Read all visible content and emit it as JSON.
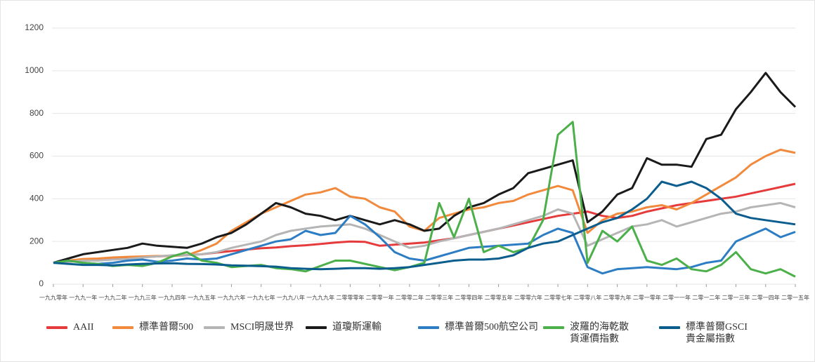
{
  "chart_data": {
    "type": "line",
    "x": [
      1990,
      1990.5,
      1991,
      1991.5,
      1992,
      1992.5,
      1993,
      1993.5,
      1994,
      1994.5,
      1995,
      1995.5,
      1996,
      1996.5,
      1997,
      1997.5,
      1998,
      1998.5,
      1999,
      1999.5,
      2000,
      2000.5,
      2001,
      2001.5,
      2002,
      2002.5,
      2003,
      2003.5,
      2004,
      2004.5,
      2005,
      2005.5,
      2006,
      2006.5,
      2007,
      2007.5,
      2008,
      2008.5,
      2009,
      2009.5,
      2010,
      2010.5,
      2011,
      2011.5,
      2012,
      2012.5,
      2013,
      2013.5,
      2014,
      2014.5,
      2015
    ],
    "xlim": [
      1990,
      2015
    ],
    "xticks": [
      {
        "value": 1990,
        "label": "一九九零年"
      },
      {
        "value": 1991,
        "label": "一九九一年"
      },
      {
        "value": 1992,
        "label": "一九九二年"
      },
      {
        "value": 1993,
        "label": "一九九三年"
      },
      {
        "value": 1994,
        "label": "一九九四年"
      },
      {
        "value": 1995,
        "label": "一九九五年"
      },
      {
        "value": 1996,
        "label": "一九九六年"
      },
      {
        "value": 1997,
        "label": "一九九七年"
      },
      {
        "value": 1998,
        "label": "一九九八年"
      },
      {
        "value": 1999,
        "label": "一九九九年"
      },
      {
        "value": 2000,
        "label": "二零零零年"
      },
      {
        "value": 2001,
        "label": "二零零一年"
      },
      {
        "value": 2002,
        "label": "二零零二年"
      },
      {
        "value": 2003,
        "label": "二零零三年"
      },
      {
        "value": 2004,
        "label": "二零零四年"
      },
      {
        "value": 2005,
        "label": "二零零五年"
      },
      {
        "value": 2006,
        "label": "二零零六年"
      },
      {
        "value": 2007,
        "label": "二零零七年"
      },
      {
        "value": 2008,
        "label": "二零零八年"
      },
      {
        "value": 2009,
        "label": "二零零九年"
      },
      {
        "value": 2010,
        "label": "二零一零年"
      },
      {
        "value": 2011,
        "label": "二零一一年"
      },
      {
        "value": 2012,
        "label": "二零一二年"
      },
      {
        "value": 2013,
        "label": "二零一三年"
      },
      {
        "value": 2014,
        "label": "二零一四年"
      },
      {
        "value": 2015,
        "label": "二零一五年"
      }
    ],
    "ylim": [
      0,
      1200
    ],
    "yticks": [
      0,
      200,
      400,
      600,
      800,
      1000,
      1200
    ],
    "grid": true,
    "legend": "bottom",
    "series": [
      {
        "name": "AAII",
        "color": "#e63b3c",
        "values": [
          100,
          105,
          110,
          115,
          120,
          123,
          128,
          130,
          133,
          136,
          140,
          148,
          155,
          162,
          168,
          172,
          178,
          182,
          188,
          195,
          200,
          198,
          180,
          185,
          190,
          195,
          205,
          215,
          230,
          245,
          260,
          275,
          290,
          305,
          320,
          330,
          340,
          320,
          310,
          320,
          340,
          355,
          370,
          380,
          390,
          400,
          410,
          425,
          440,
          455,
          470
        ]
      },
      {
        "name": "標準普爾500",
        "color": "#f28a3e",
        "values": [
          100,
          110,
          118,
          120,
          125,
          128,
          130,
          132,
          132,
          135,
          160,
          190,
          250,
          290,
          330,
          360,
          390,
          420,
          430,
          450,
          410,
          400,
          360,
          340,
          270,
          250,
          310,
          330,
          350,
          360,
          380,
          390,
          420,
          440,
          460,
          440,
          240,
          300,
          330,
          340,
          360,
          370,
          350,
          380,
          420,
          460,
          500,
          560,
          600,
          630,
          615
        ]
      },
      {
        "name": "MSCI明晟世界",
        "color": "#b5b5b5",
        "values": [
          100,
          105,
          110,
          110,
          115,
          118,
          125,
          130,
          135,
          135,
          140,
          150,
          170,
          185,
          200,
          230,
          250,
          260,
          270,
          275,
          280,
          260,
          230,
          200,
          170,
          180,
          200,
          215,
          230,
          245,
          260,
          280,
          300,
          320,
          350,
          330,
          180,
          210,
          240,
          270,
          280,
          300,
          270,
          290,
          310,
          330,
          340,
          360,
          370,
          380,
          360
        ]
      },
      {
        "name": "道瓊斯運輸",
        "color": "#1a1a1a",
        "values": [
          100,
          120,
          140,
          150,
          160,
          170,
          190,
          180,
          175,
          170,
          190,
          220,
          240,
          280,
          330,
          380,
          360,
          330,
          320,
          300,
          320,
          300,
          280,
          300,
          280,
          250,
          260,
          320,
          360,
          380,
          420,
          450,
          520,
          540,
          560,
          580,
          290,
          340,
          420,
          450,
          590,
          560,
          560,
          550,
          680,
          700,
          820,
          900,
          990,
          900,
          830
        ]
      },
      {
        "name": "標準普爾500航空公司",
        "color": "#2c7dc3",
        "values": [
          100,
          110,
          100,
          95,
          100,
          110,
          115,
          105,
          110,
          120,
          115,
          120,
          140,
          160,
          180,
          200,
          210,
          250,
          230,
          240,
          320,
          280,
          220,
          150,
          120,
          110,
          130,
          150,
          170,
          175,
          180,
          185,
          190,
          230,
          260,
          240,
          80,
          50,
          70,
          75,
          80,
          75,
          70,
          80,
          100,
          110,
          200,
          230,
          260,
          220,
          245
        ]
      },
      {
        "name": "波羅的海乾散貨運價指數",
        "color": "#4cb04a",
        "values": [
          100,
          110,
          100,
          95,
          85,
          90,
          85,
          100,
          130,
          150,
          110,
          100,
          80,
          85,
          90,
          75,
          70,
          60,
          85,
          110,
          110,
          95,
          80,
          65,
          80,
          100,
          380,
          220,
          400,
          150,
          180,
          150,
          170,
          300,
          700,
          760,
          100,
          250,
          200,
          270,
          110,
          90,
          120,
          70,
          60,
          90,
          150,
          70,
          50,
          70,
          35
        ]
      },
      {
        "name": "標準普爾GSCI貴金屬指數",
        "color": "#0b5d8e",
        "values": [
          100,
          95,
          90,
          90,
          88,
          92,
          95,
          97,
          98,
          95,
          94,
          92,
          88,
          86,
          84,
          82,
          75,
          72,
          70,
          72,
          75,
          75,
          72,
          75,
          80,
          90,
          100,
          110,
          115,
          115,
          120,
          135,
          170,
          190,
          200,
          230,
          260,
          290,
          310,
          350,
          400,
          480,
          460,
          480,
          450,
          400,
          330,
          310,
          300,
          290,
          280
        ]
      }
    ]
  }
}
